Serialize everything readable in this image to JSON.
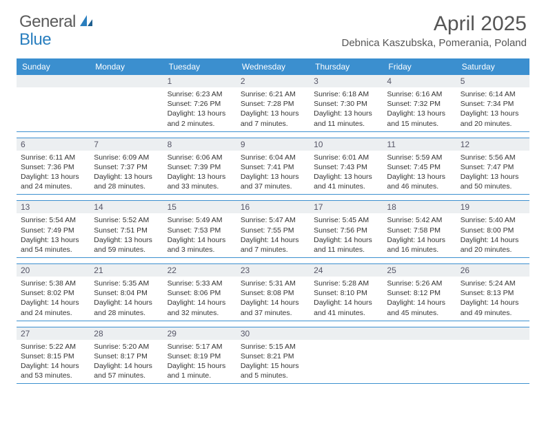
{
  "logo": {
    "text1": "General",
    "text2": "Blue"
  },
  "title": "April 2025",
  "location": "Debnica Kaszubska, Pomerania, Poland",
  "colors": {
    "header_bg": "#3b8fcf",
    "header_text": "#ffffff",
    "daynum_bg": "#eceff1",
    "border": "#3b8fcf",
    "logo_gray": "#5a5a5a",
    "logo_blue": "#2a7fbf"
  },
  "day_names": [
    "Sunday",
    "Monday",
    "Tuesday",
    "Wednesday",
    "Thursday",
    "Friday",
    "Saturday"
  ],
  "weeks": [
    [
      {
        "n": "",
        "sr": "",
        "ss": "",
        "dl": ""
      },
      {
        "n": "",
        "sr": "",
        "ss": "",
        "dl": ""
      },
      {
        "n": "1",
        "sr": "Sunrise: 6:23 AM",
        "ss": "Sunset: 7:26 PM",
        "dl": "Daylight: 13 hours and 2 minutes."
      },
      {
        "n": "2",
        "sr": "Sunrise: 6:21 AM",
        "ss": "Sunset: 7:28 PM",
        "dl": "Daylight: 13 hours and 7 minutes."
      },
      {
        "n": "3",
        "sr": "Sunrise: 6:18 AM",
        "ss": "Sunset: 7:30 PM",
        "dl": "Daylight: 13 hours and 11 minutes."
      },
      {
        "n": "4",
        "sr": "Sunrise: 6:16 AM",
        "ss": "Sunset: 7:32 PM",
        "dl": "Daylight: 13 hours and 15 minutes."
      },
      {
        "n": "5",
        "sr": "Sunrise: 6:14 AM",
        "ss": "Sunset: 7:34 PM",
        "dl": "Daylight: 13 hours and 20 minutes."
      }
    ],
    [
      {
        "n": "6",
        "sr": "Sunrise: 6:11 AM",
        "ss": "Sunset: 7:36 PM",
        "dl": "Daylight: 13 hours and 24 minutes."
      },
      {
        "n": "7",
        "sr": "Sunrise: 6:09 AM",
        "ss": "Sunset: 7:37 PM",
        "dl": "Daylight: 13 hours and 28 minutes."
      },
      {
        "n": "8",
        "sr": "Sunrise: 6:06 AM",
        "ss": "Sunset: 7:39 PM",
        "dl": "Daylight: 13 hours and 33 minutes."
      },
      {
        "n": "9",
        "sr": "Sunrise: 6:04 AM",
        "ss": "Sunset: 7:41 PM",
        "dl": "Daylight: 13 hours and 37 minutes."
      },
      {
        "n": "10",
        "sr": "Sunrise: 6:01 AM",
        "ss": "Sunset: 7:43 PM",
        "dl": "Daylight: 13 hours and 41 minutes."
      },
      {
        "n": "11",
        "sr": "Sunrise: 5:59 AM",
        "ss": "Sunset: 7:45 PM",
        "dl": "Daylight: 13 hours and 46 minutes."
      },
      {
        "n": "12",
        "sr": "Sunrise: 5:56 AM",
        "ss": "Sunset: 7:47 PM",
        "dl": "Daylight: 13 hours and 50 minutes."
      }
    ],
    [
      {
        "n": "13",
        "sr": "Sunrise: 5:54 AM",
        "ss": "Sunset: 7:49 PM",
        "dl": "Daylight: 13 hours and 54 minutes."
      },
      {
        "n": "14",
        "sr": "Sunrise: 5:52 AM",
        "ss": "Sunset: 7:51 PM",
        "dl": "Daylight: 13 hours and 59 minutes."
      },
      {
        "n": "15",
        "sr": "Sunrise: 5:49 AM",
        "ss": "Sunset: 7:53 PM",
        "dl": "Daylight: 14 hours and 3 minutes."
      },
      {
        "n": "16",
        "sr": "Sunrise: 5:47 AM",
        "ss": "Sunset: 7:55 PM",
        "dl": "Daylight: 14 hours and 7 minutes."
      },
      {
        "n": "17",
        "sr": "Sunrise: 5:45 AM",
        "ss": "Sunset: 7:56 PM",
        "dl": "Daylight: 14 hours and 11 minutes."
      },
      {
        "n": "18",
        "sr": "Sunrise: 5:42 AM",
        "ss": "Sunset: 7:58 PM",
        "dl": "Daylight: 14 hours and 16 minutes."
      },
      {
        "n": "19",
        "sr": "Sunrise: 5:40 AM",
        "ss": "Sunset: 8:00 PM",
        "dl": "Daylight: 14 hours and 20 minutes."
      }
    ],
    [
      {
        "n": "20",
        "sr": "Sunrise: 5:38 AM",
        "ss": "Sunset: 8:02 PM",
        "dl": "Daylight: 14 hours and 24 minutes."
      },
      {
        "n": "21",
        "sr": "Sunrise: 5:35 AM",
        "ss": "Sunset: 8:04 PM",
        "dl": "Daylight: 14 hours and 28 minutes."
      },
      {
        "n": "22",
        "sr": "Sunrise: 5:33 AM",
        "ss": "Sunset: 8:06 PM",
        "dl": "Daylight: 14 hours and 32 minutes."
      },
      {
        "n": "23",
        "sr": "Sunrise: 5:31 AM",
        "ss": "Sunset: 8:08 PM",
        "dl": "Daylight: 14 hours and 37 minutes."
      },
      {
        "n": "24",
        "sr": "Sunrise: 5:28 AM",
        "ss": "Sunset: 8:10 PM",
        "dl": "Daylight: 14 hours and 41 minutes."
      },
      {
        "n": "25",
        "sr": "Sunrise: 5:26 AM",
        "ss": "Sunset: 8:12 PM",
        "dl": "Daylight: 14 hours and 45 minutes."
      },
      {
        "n": "26",
        "sr": "Sunrise: 5:24 AM",
        "ss": "Sunset: 8:13 PM",
        "dl": "Daylight: 14 hours and 49 minutes."
      }
    ],
    [
      {
        "n": "27",
        "sr": "Sunrise: 5:22 AM",
        "ss": "Sunset: 8:15 PM",
        "dl": "Daylight: 14 hours and 53 minutes."
      },
      {
        "n": "28",
        "sr": "Sunrise: 5:20 AM",
        "ss": "Sunset: 8:17 PM",
        "dl": "Daylight: 14 hours and 57 minutes."
      },
      {
        "n": "29",
        "sr": "Sunrise: 5:17 AM",
        "ss": "Sunset: 8:19 PM",
        "dl": "Daylight: 15 hours and 1 minute."
      },
      {
        "n": "30",
        "sr": "Sunrise: 5:15 AM",
        "ss": "Sunset: 8:21 PM",
        "dl": "Daylight: 15 hours and 5 minutes."
      },
      {
        "n": "",
        "sr": "",
        "ss": "",
        "dl": ""
      },
      {
        "n": "",
        "sr": "",
        "ss": "",
        "dl": ""
      },
      {
        "n": "",
        "sr": "",
        "ss": "",
        "dl": ""
      }
    ]
  ]
}
